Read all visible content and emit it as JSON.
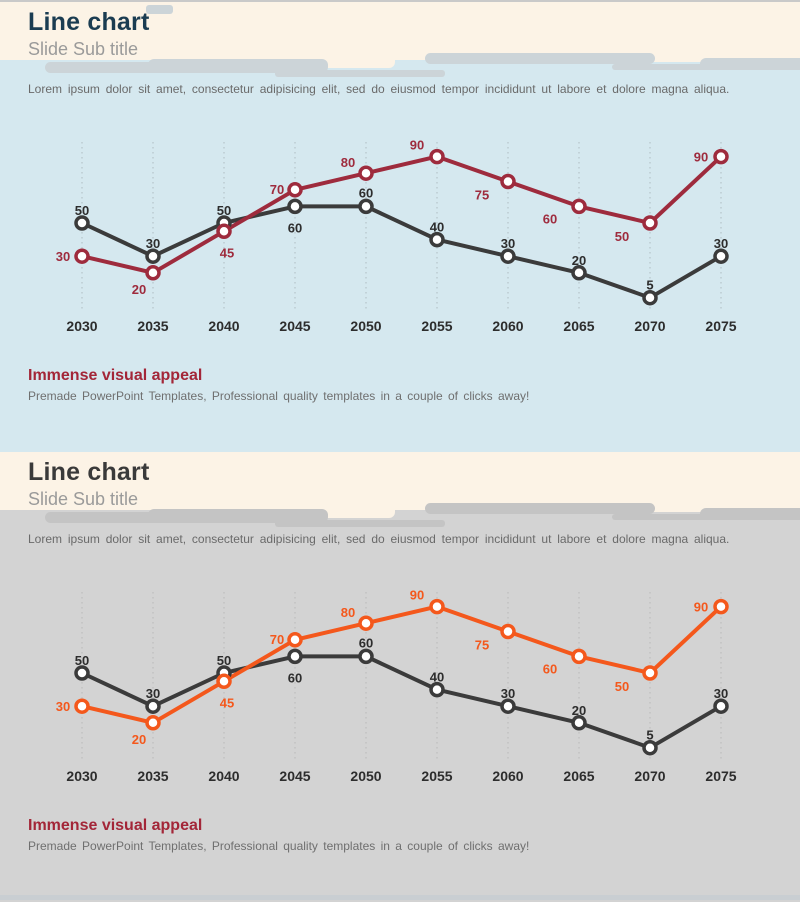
{
  "page": {
    "border_color": "#c9c9c9",
    "bottom_strip_color": "#c9ced2"
  },
  "slides": [
    {
      "title": "Line chart",
      "subtitle": "Slide Sub title",
      "body_text": "Lorem ipsum dolor sit amet, consectetur adipisicing elit, sed do eiusmod tempor incididunt ut labore et dolore magna aliqua.",
      "footer_heading": "Immense visual appeal",
      "footer_text": "Premade PowerPoint Templates, Professional quality templates in a couple of clicks away!",
      "colors": {
        "header-bg": "#fcf3e6",
        "body-bg": "#d5e8ef",
        "title-color": "#1b3c51",
        "subtitle-color": "#9a9a9a",
        "cloud-color": "#ccd4d8",
        "footer-heading-color": "#a32638"
      }
    },
    {
      "title": "Line chart",
      "subtitle": "Slide Sub title",
      "body_text": "Lorem ipsum dolor sit amet, consectetur adipisicing elit, sed do eiusmod tempor incididunt ut labore et dolore magna aliqua.",
      "footer_heading": "Immense visual appeal",
      "footer_text": "Premade PowerPoint Templates, Professional quality templates in a couple of clicks away!",
      "colors": {
        "header-bg": "#fcf3e6",
        "body-bg": "#d3d3d3",
        "title-color": "#3a3a3a",
        "subtitle-color": "#9a9a9a",
        "cloud-color": "#c4c4c4",
        "footer-heading-color": "#a32638"
      }
    }
  ],
  "chart_data": [
    {
      "type": "line",
      "title": "Line chart",
      "categories": [
        "2030",
        "2035",
        "2040",
        "2045",
        "2050",
        "2055",
        "2060",
        "2065",
        "2070",
        "2075"
      ],
      "series": [
        {
          "name": "dark-series",
          "values": [
            50,
            30,
            50,
            60,
            60,
            40,
            30,
            20,
            5,
            30
          ],
          "color": "#3b3b3b",
          "label_color": "#2d2d2d"
        },
        {
          "name": "accent-series",
          "values": [
            30,
            20,
            45,
            70,
            80,
            90,
            75,
            60,
            50,
            90
          ],
          "color": "#9e2b3d",
          "label_color": "#9e2b3d"
        }
      ],
      "ylim": [
        0,
        100
      ],
      "grid": "vertical-dotted",
      "gridline_color": "#aebcc2",
      "category_label_color": "#2d2d2d",
      "data_labels": true,
      "legend": "none",
      "label_offsets": {
        "dark-series": [
          [
            0,
            -8
          ],
          [
            0,
            -8
          ],
          [
            0,
            -8
          ],
          [
            0,
            26
          ],
          [
            0,
            -9
          ],
          [
            0,
            -8
          ],
          [
            0,
            -8
          ],
          [
            0,
            -8
          ],
          [
            0,
            -8
          ],
          [
            0,
            -8
          ]
        ],
        "accent-series": [
          [
            -19,
            5
          ],
          [
            -14,
            21
          ],
          [
            3,
            26
          ],
          [
            -18,
            4
          ],
          [
            -18,
            -6
          ],
          [
            -20,
            -7
          ],
          [
            -26,
            18
          ],
          [
            -29,
            17
          ],
          [
            -28,
            18
          ],
          [
            -20,
            5
          ]
        ]
      }
    },
    {
      "type": "line",
      "title": "Line chart",
      "categories": [
        "2030",
        "2035",
        "2040",
        "2045",
        "2050",
        "2055",
        "2060",
        "2065",
        "2070",
        "2075"
      ],
      "series": [
        {
          "name": "dark-series",
          "values": [
            50,
            30,
            50,
            60,
            60,
            40,
            30,
            20,
            5,
            30
          ],
          "color": "#3b3b3b",
          "label_color": "#2d2d2d"
        },
        {
          "name": "accent-series",
          "values": [
            30,
            20,
            45,
            70,
            80,
            90,
            75,
            60,
            50,
            90
          ],
          "color": "#f4581c",
          "label_color": "#f4581c"
        }
      ],
      "ylim": [
        0,
        100
      ],
      "grid": "vertical-dotted",
      "gridline_color": "#b9b9b9",
      "category_label_color": "#2d2d2d",
      "data_labels": true,
      "legend": "none",
      "label_offsets": {
        "dark-series": [
          [
            0,
            -8
          ],
          [
            0,
            -8
          ],
          [
            0,
            -8
          ],
          [
            0,
            26
          ],
          [
            0,
            -9
          ],
          [
            0,
            -8
          ],
          [
            0,
            -8
          ],
          [
            0,
            -8
          ],
          [
            0,
            -8
          ],
          [
            0,
            -8
          ]
        ],
        "accent-series": [
          [
            -19,
            5
          ],
          [
            -14,
            21
          ],
          [
            3,
            26
          ],
          [
            -18,
            4
          ],
          [
            -18,
            -6
          ],
          [
            -20,
            -7
          ],
          [
            -26,
            18
          ],
          [
            -29,
            17
          ],
          [
            -28,
            18
          ],
          [
            -20,
            5
          ]
        ]
      }
    }
  ]
}
